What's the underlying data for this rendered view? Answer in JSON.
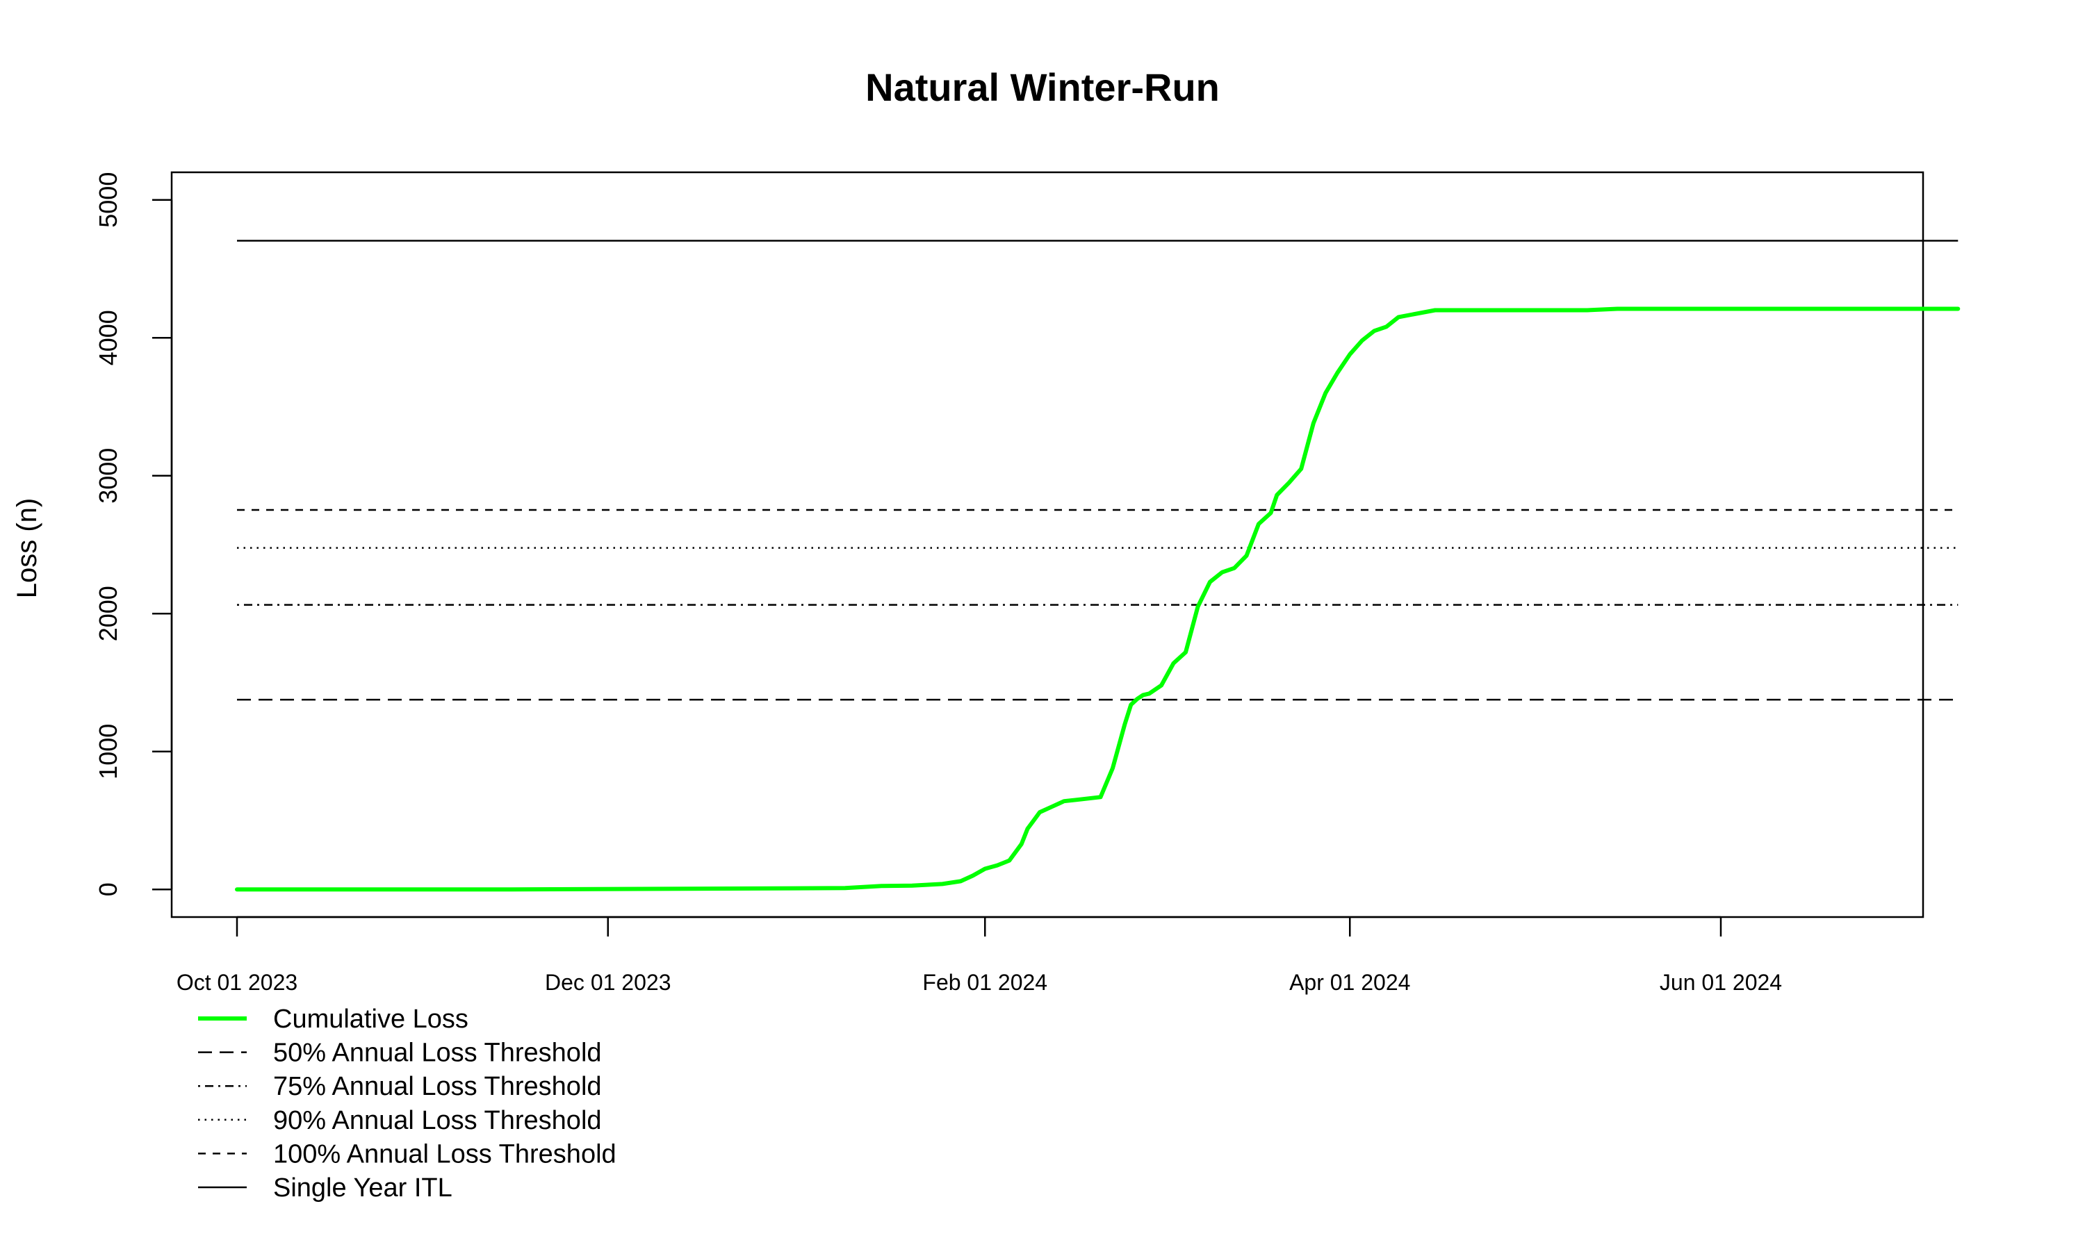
{
  "chart_data": {
    "type": "line",
    "title": "Natural Winter-Run",
    "xlabel": "",
    "ylabel": "Loss (n)",
    "x_type": "date",
    "xlim": [
      "2023-10-01",
      "2024-07-15"
    ],
    "ylim": [
      -200,
      5200
    ],
    "yticks": [
      0,
      1000,
      2000,
      3000,
      4000,
      5000
    ],
    "ytick_labels": [
      "0",
      "1000",
      "2000",
      "3000",
      "4000",
      "5000"
    ],
    "xticks": [
      "2023-10-01",
      "2023-12-01",
      "2024-02-01",
      "2024-04-01",
      "2024-06-01"
    ],
    "xtick_labels": [
      "Oct 01 2023",
      "Dec 01 2023",
      "Feb 01 2024",
      "Apr 01 2024",
      "Jun 01 2024"
    ],
    "grid": false,
    "legend_position": "bottom-left",
    "series": [
      {
        "name": "Cumulative Loss",
        "color": "#00ff00",
        "line_style": "solid",
        "x": [
          "2023-10-01",
          "2023-11-15",
          "2024-01-09",
          "2024-01-15",
          "2024-01-20",
          "2024-01-25",
          "2024-01-28",
          "2024-01-30",
          "2024-02-01",
          "2024-02-03",
          "2024-02-05",
          "2024-02-07",
          "2024-02-08",
          "2024-02-09",
          "2024-02-10",
          "2024-02-12",
          "2024-02-14",
          "2024-02-16",
          "2024-02-18",
          "2024-02-20",
          "2024-02-22",
          "2024-02-24",
          "2024-02-25",
          "2024-02-26",
          "2024-02-27",
          "2024-02-28",
          "2024-03-01",
          "2024-03-03",
          "2024-03-05",
          "2024-03-07",
          "2024-03-09",
          "2024-03-11",
          "2024-03-13",
          "2024-03-15",
          "2024-03-17",
          "2024-03-19",
          "2024-03-20",
          "2024-03-22",
          "2024-03-24",
          "2024-03-26",
          "2024-03-28",
          "2024-03-30",
          "2024-04-01",
          "2024-04-03",
          "2024-04-05",
          "2024-04-07",
          "2024-04-09",
          "2024-04-15",
          "2024-05-10",
          "2024-05-15",
          "2024-07-10"
        ],
        "y": [
          0,
          0,
          10,
          25,
          28,
          40,
          60,
          100,
          150,
          175,
          210,
          330,
          440,
          500,
          560,
          600,
          640,
          650,
          660,
          670,
          880,
          1200,
          1340,
          1380,
          1410,
          1420,
          1480,
          1640,
          1720,
          2050,
          2230,
          2300,
          2330,
          2420,
          2650,
          2730,
          2860,
          2950,
          3050,
          3380,
          3600,
          3750,
          3880,
          3980,
          4050,
          4080,
          4150,
          4200,
          4200,
          4210,
          4210
        ]
      },
      {
        "name": "50% Annual Loss Threshold",
        "color": "#000000",
        "line_style": "longdash",
        "x": [
          "2023-10-01",
          "2024-07-10"
        ],
        "y": [
          1376,
          1376
        ]
      },
      {
        "name": "75% Annual Loss Threshold",
        "color": "#000000",
        "line_style": "dotdash",
        "x": [
          "2023-10-01",
          "2024-07-10"
        ],
        "y": [
          2064,
          2064
        ]
      },
      {
        "name": "90% Annual Loss Threshold",
        "color": "#000000",
        "line_style": "dotted",
        "x": [
          "2023-10-01",
          "2024-07-10"
        ],
        "y": [
          2477,
          2477
        ]
      },
      {
        "name": "100% Annual Loss Threshold",
        "color": "#000000",
        "line_style": "dashed",
        "x": [
          "2023-10-01",
          "2024-07-10"
        ],
        "y": [
          2752,
          2752
        ]
      },
      {
        "name": "Single Year ITL",
        "color": "#000000",
        "line_style": "solid",
        "x": [
          "2023-10-01",
          "2024-07-10"
        ],
        "y": [
          4704,
          4704
        ]
      }
    ]
  }
}
